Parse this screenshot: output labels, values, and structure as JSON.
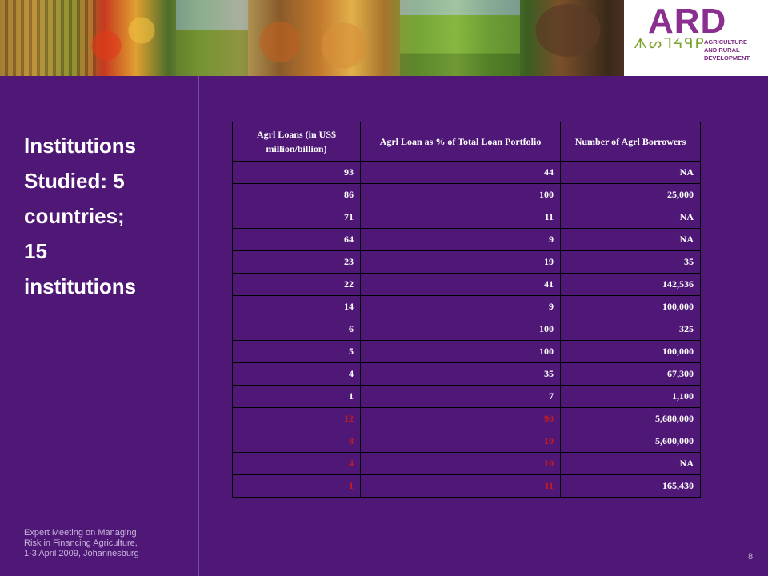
{
  "header": {
    "logo_text": "ARD",
    "logo_glyphs": "ᗑᔕᒣᔦᑫᑭ",
    "logo_subtitle": [
      "AGRICULTURE",
      "AND RURAL",
      "DEVELOPMENT"
    ]
  },
  "sidebar": {
    "title_lines": [
      "Institutions",
      "Studied: 5",
      "countries;",
      "15",
      "institutions"
    ],
    "footer_lines": [
      "Expert Meeting on Managing",
      "Risk in Financing Agriculture,",
      "1-3 April 2009,  Johannesburg"
    ]
  },
  "page_number": "8",
  "table": {
    "headers": [
      "Agrl Loans (in US$ million/billion)",
      "Agrl Loan as % of Total Loan Portfolio",
      "Number of Agrl Borrowers"
    ],
    "rows": [
      {
        "loans": "93",
        "percent": "44",
        "borrowers": "NA",
        "highlight": false
      },
      {
        "loans": "86",
        "percent": "100",
        "borrowers": "25,000",
        "highlight": false
      },
      {
        "loans": "71",
        "percent": "11",
        "borrowers": "NA",
        "highlight": false
      },
      {
        "loans": "64",
        "percent": "9",
        "borrowers": "NA",
        "highlight": false
      },
      {
        "loans": "23",
        "percent": "19",
        "borrowers": "35",
        "highlight": false
      },
      {
        "loans": "22",
        "percent": "41",
        "borrowers": "142,536",
        "highlight": false
      },
      {
        "loans": "14",
        "percent": "9",
        "borrowers": "100,000",
        "highlight": false
      },
      {
        "loans": "6",
        "percent": "100",
        "borrowers": "325",
        "highlight": false
      },
      {
        "loans": "5",
        "percent": "100",
        "borrowers": "100,000",
        "highlight": false
      },
      {
        "loans": "4",
        "percent": "35",
        "borrowers": "67,300",
        "highlight": false
      },
      {
        "loans": "1",
        "percent": "7",
        "borrowers": "1,100",
        "highlight": false
      },
      {
        "loans": "12",
        "percent": "90",
        "borrowers": "5,680,000",
        "highlight": true
      },
      {
        "loans": "8",
        "percent": "10",
        "borrowers": "5,600,000",
        "highlight": true
      },
      {
        "loans": "4",
        "percent": "10",
        "borrowers": "NA",
        "highlight": true
      },
      {
        "loans": "1",
        "percent": "11",
        "borrowers": "165,430",
        "highlight": true
      }
    ]
  },
  "colors": {
    "background": "#4f1877",
    "highlight_text": "#cc1a1a",
    "logo": "#8a2e8f"
  }
}
